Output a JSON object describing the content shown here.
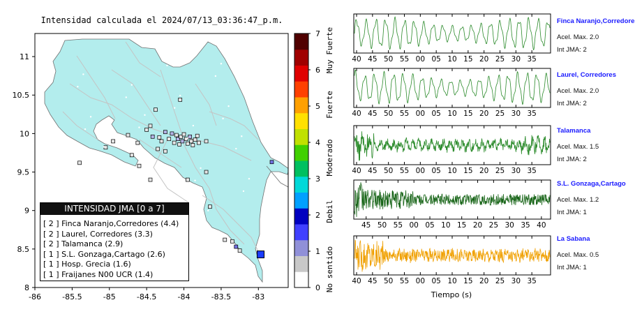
{
  "chart_data": [
    {
      "type": "map",
      "title": "Intensidad calculada el 2024/07/13_03:36:47_p.m.",
      "xlim": [
        -86,
        -82.6
      ],
      "ylim": [
        8,
        11.3
      ],
      "x_ticks": [
        "-86",
        "-85.5",
        "-85",
        "-84.5",
        "-84",
        "-83.5",
        "-83"
      ],
      "y_ticks": [
        "8",
        "8.5",
        "9",
        "9.5",
        "10",
        "10.5",
        "11"
      ],
      "colorbar": {
        "ticks": [
          "0",
          "1",
          "2",
          "3",
          "4",
          "5",
          "6",
          "7"
        ],
        "labels": [
          "No sentido",
          "Debil",
          "Moderado",
          "Fuerte",
          "Muy Fuerte"
        ],
        "colors": [
          "#ffffff",
          "#c8c8c8",
          "#9090d8",
          "#4040ff",
          "#0000c0",
          "#00a0ff",
          "#00d8d8",
          "#00c060",
          "#40d000",
          "#c0e000",
          "#ffe000",
          "#ffa000",
          "#ff4000",
          "#e00000",
          "#a00000",
          "#500000"
        ]
      },
      "legend": {
        "title": "INTENSIDAD JMA [0 a 7]",
        "entries": [
          "[ 2 ]  Finca Naranjo,Corredores (4.4)",
          "[ 2 ]  Laurel, Corredores (3.3)",
          "[ 2 ]  Talamanca (2.9)",
          "[ 1 ]  S.L. Gonzaga,Cartago (2.6)",
          "[ 1 ]  Hosp. Grecia (1.6)",
          "[ 1 ]  Fraijanes N00 UCR (1.4)"
        ]
      },
      "epicenter": {
        "lon": -82.97,
        "lat": 8.43,
        "color": "#1a3cff"
      },
      "stations": [
        {
          "lon": -84.75,
          "lat": 9.98,
          "jma": 0
        },
        {
          "lon": -84.5,
          "lat": 10.05,
          "jma": 0
        },
        {
          "lon": -84.45,
          "lat": 10.1,
          "jma": 0
        },
        {
          "lon": -84.42,
          "lat": 9.96,
          "jma": 1
        },
        {
          "lon": -84.33,
          "lat": 9.95,
          "jma": 0
        },
        {
          "lon": -84.3,
          "lat": 9.9,
          "jma": 0
        },
        {
          "lon": -84.25,
          "lat": 10.02,
          "jma": 1
        },
        {
          "lon": -84.2,
          "lat": 9.93,
          "jma": 0
        },
        {
          "lon": -84.16,
          "lat": 10.0,
          "jma": 1
        },
        {
          "lon": -84.13,
          "lat": 9.88,
          "jma": 0
        },
        {
          "lon": -84.1,
          "lat": 9.98,
          "jma": 0
        },
        {
          "lon": -84.08,
          "lat": 9.93,
          "jma": 1
        },
        {
          "lon": -84.06,
          "lat": 9.86,
          "jma": 0
        },
        {
          "lon": -84.04,
          "lat": 9.96,
          "jma": 0
        },
        {
          "lon": -84.02,
          "lat": 9.9,
          "jma": 1
        },
        {
          "lon": -84.0,
          "lat": 9.99,
          "jma": 0
        },
        {
          "lon": -83.97,
          "lat": 9.93,
          "jma": 0
        },
        {
          "lon": -83.95,
          "lat": 9.87,
          "jma": 0
        },
        {
          "lon": -83.92,
          "lat": 9.96,
          "jma": 1
        },
        {
          "lon": -83.9,
          "lat": 9.9,
          "jma": 0
        },
        {
          "lon": -83.88,
          "lat": 9.85,
          "jma": 0
        },
        {
          "lon": -83.85,
          "lat": 9.92,
          "jma": 0
        },
        {
          "lon": -83.82,
          "lat": 9.97,
          "jma": 0
        },
        {
          "lon": -83.8,
          "lat": 9.88,
          "jma": 0
        },
        {
          "lon": -83.7,
          "lat": 9.9,
          "jma": 0
        },
        {
          "lon": -84.62,
          "lat": 9.88,
          "jma": 0
        },
        {
          "lon": -84.05,
          "lat": 10.44,
          "jma": 0
        },
        {
          "lon": -84.38,
          "lat": 10.31,
          "jma": 0
        },
        {
          "lon": -84.95,
          "lat": 9.9,
          "jma": 0
        },
        {
          "lon": -85.05,
          "lat": 9.82,
          "jma": 0
        },
        {
          "lon": -85.4,
          "lat": 9.62,
          "jma": 0
        },
        {
          "lon": -84.6,
          "lat": 9.58,
          "jma": 0
        },
        {
          "lon": -83.95,
          "lat": 9.4,
          "jma": 0
        },
        {
          "lon": -83.7,
          "lat": 9.5,
          "jma": 0
        },
        {
          "lon": -83.65,
          "lat": 9.05,
          "jma": 0
        },
        {
          "lon": -83.45,
          "lat": 8.62,
          "jma": 0
        },
        {
          "lon": -83.35,
          "lat": 8.6,
          "jma": 0
        },
        {
          "lon": -83.3,
          "lat": 8.53,
          "jma": 2
        },
        {
          "lon": -83.25,
          "lat": 8.48,
          "jma": 0
        },
        {
          "lon": -82.82,
          "lat": 9.63,
          "jma": 2
        },
        {
          "lon": -84.45,
          "lat": 9.4,
          "jma": 0
        },
        {
          "lon": -84.7,
          "lat": 9.72,
          "jma": 0
        },
        {
          "lon": -84.25,
          "lat": 9.77,
          "jma": 0
        },
        {
          "lon": -84.35,
          "lat": 9.8,
          "jma": 0
        }
      ]
    },
    {
      "type": "line",
      "panels": [
        {
          "name": "Finca Naranjo,Corredores",
          "acel": "Acel. Max. 2.0",
          "jma": "Int JMA: 2",
          "color": "#2a8a2a",
          "x_ticks": [
            "40",
            "45",
            "50",
            "55",
            "00",
            "05",
            "10",
            "15",
            "20",
            "25",
            "30",
            "35"
          ],
          "x_start": 40,
          "style": "smooth"
        },
        {
          "name": "Laurel, Corredores",
          "acel": "Acel. Max. 2.0",
          "jma": "Int JMA: 2",
          "color": "#2a8a2a",
          "x_ticks": [
            "40",
            "45",
            "50",
            "55",
            "00",
            "05",
            "10",
            "15",
            "20",
            "25",
            "30",
            "35"
          ],
          "x_start": 40,
          "style": "smooth"
        },
        {
          "name": "Talamanca",
          "acel": "Acel. Max. 1.5",
          "jma": "Int JMA: 2",
          "color": "#2a8a2a",
          "x_ticks": [
            "40",
            "45",
            "50",
            "55",
            "00",
            "05",
            "10",
            "15",
            "20",
            "25",
            "30",
            "35"
          ],
          "x_start": 40,
          "style": "noisy"
        },
        {
          "name": "S.L. Gonzaga,Cartago",
          "acel": "Acel. Max. 1.2",
          "jma": "Int JMA: 1",
          "color": "#156315",
          "x_ticks": [
            "45",
            "50",
            "55",
            "00",
            "05",
            "10",
            "15",
            "20",
            "25",
            "30",
            "35",
            "40"
          ],
          "x_start": 42,
          "style": "dense"
        },
        {
          "name": "La Sabana",
          "acel": "Acel. Max. 0.5",
          "jma": "Int JMA: 1",
          "color": "#f0a000",
          "x_ticks": [
            "40",
            "45",
            "50",
            "55",
            "00",
            "05",
            "10",
            "15",
            "20",
            "25",
            "30",
            "35"
          ],
          "x_start": 40,
          "style": "burst"
        }
      ],
      "xlabel": "Tiempo (s)"
    }
  ]
}
